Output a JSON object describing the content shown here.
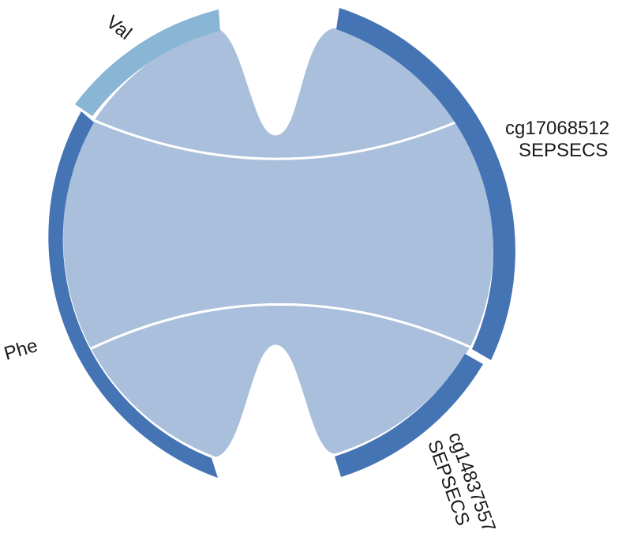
{
  "sectors": [
    {
      "id": "val",
      "lines": [
        "Val"
      ],
      "color": "#8ab6d6"
    },
    {
      "id": "cg17068512",
      "lines": [
        "cg17068512",
        "SEPSECS"
      ],
      "color": "#4574b4"
    },
    {
      "id": "cg14837557",
      "lines": [
        "cg14837557",
        "SEPSECS"
      ],
      "color": "#4574b4"
    },
    {
      "id": "phe",
      "lines": [
        "Phe"
      ],
      "color": "#4574b4"
    }
  ],
  "links": [
    {
      "from": "val",
      "to": "cg17068512"
    },
    {
      "from": "phe",
      "to": "cg17068512"
    },
    {
      "from": "phe",
      "to": "cg14837557"
    }
  ],
  "link_color": "#aabfdb"
}
